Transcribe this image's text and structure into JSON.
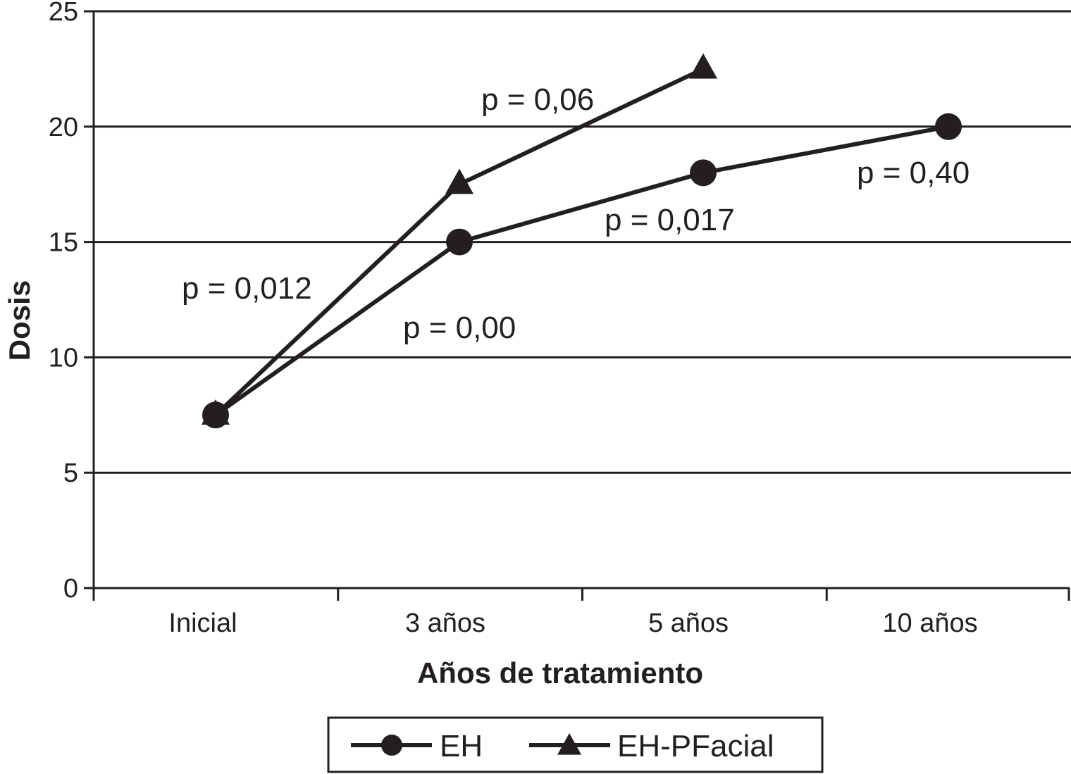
{
  "chart_data": {
    "type": "line",
    "title": "",
    "xlabel": "Años de tratamiento",
    "ylabel": "Dosis",
    "categories": [
      "Inicial",
      "3 años",
      "5 años",
      "10 años"
    ],
    "ylim": [
      0,
      25
    ],
    "yticks": [
      0,
      5,
      10,
      15,
      20,
      25
    ],
    "grid": true,
    "legend_position": "bottom",
    "series": [
      {
        "name": "EH",
        "marker": "circle",
        "values": [
          7.5,
          15,
          18,
          20
        ]
      },
      {
        "name": "EH-PFacial",
        "marker": "triangle",
        "values": [
          7.5,
          17.5,
          22.5,
          null
        ]
      }
    ],
    "annotations": [
      {
        "text": "p = 0,06",
        "near_category": "3 años",
        "series": "EH-PFacial"
      },
      {
        "text": "p = 0,40",
        "near_category": "10 años",
        "series": "EH"
      },
      {
        "text": "p = 0,017",
        "near_category": "5 años",
        "series": "EH"
      },
      {
        "text": "p = 0,012",
        "near_category": "Inicial",
        "series": "EH-PFacial"
      },
      {
        "text": "p = 0,00",
        "near_category": "3 años",
        "series": "EH"
      }
    ],
    "colors": {
      "line": "#231f20",
      "grid": "#231f20",
      "background": "#ffffff"
    }
  }
}
